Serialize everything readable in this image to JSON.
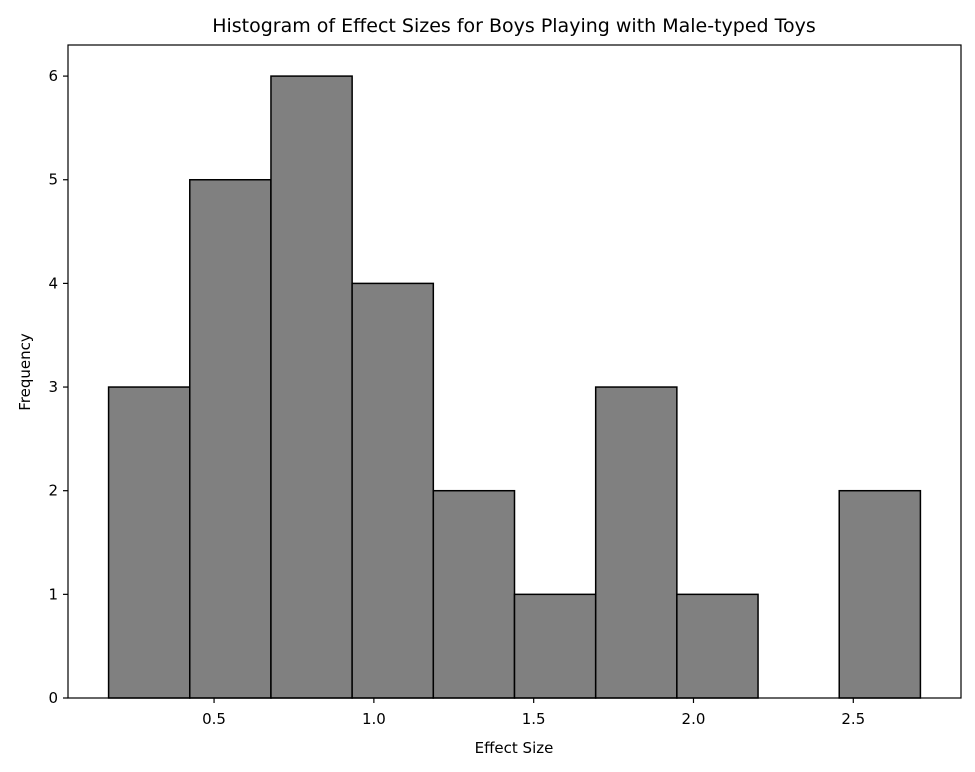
{
  "chart_data": {
    "type": "bar",
    "title": "Histogram of Effect Sizes for Boys Playing with Male-typed Toys",
    "xlabel": "Effect Size",
    "ylabel": "Frequency",
    "bins": [
      {
        "start": 0.17,
        "end": 0.424,
        "count": 3
      },
      {
        "start": 0.424,
        "end": 0.678,
        "count": 5
      },
      {
        "start": 0.678,
        "end": 0.932,
        "count": 6
      },
      {
        "start": 0.932,
        "end": 1.186,
        "count": 4
      },
      {
        "start": 1.186,
        "end": 1.44,
        "count": 2
      },
      {
        "start": 1.44,
        "end": 1.694,
        "count": 1
      },
      {
        "start": 1.694,
        "end": 1.948,
        "count": 3
      },
      {
        "start": 1.948,
        "end": 2.202,
        "count": 1
      },
      {
        "start": 2.202,
        "end": 2.456,
        "count": 0
      },
      {
        "start": 2.456,
        "end": 2.71,
        "count": 2
      }
    ],
    "xlim": [
      0.043,
      2.837
    ],
    "ylim": [
      0,
      6.3
    ],
    "xticks": [
      0.5,
      1.0,
      1.5,
      2.0,
      2.5
    ],
    "xtick_labels": [
      "0.5",
      "1.0",
      "1.5",
      "2.0",
      "2.5"
    ],
    "yticks": [
      0,
      1,
      2,
      3,
      4,
      5,
      6
    ],
    "ytick_labels": [
      "0",
      "1",
      "2",
      "3",
      "4",
      "5",
      "6"
    ],
    "bar_color": "#808080",
    "edge_color": "#000000",
    "grid": false
  }
}
